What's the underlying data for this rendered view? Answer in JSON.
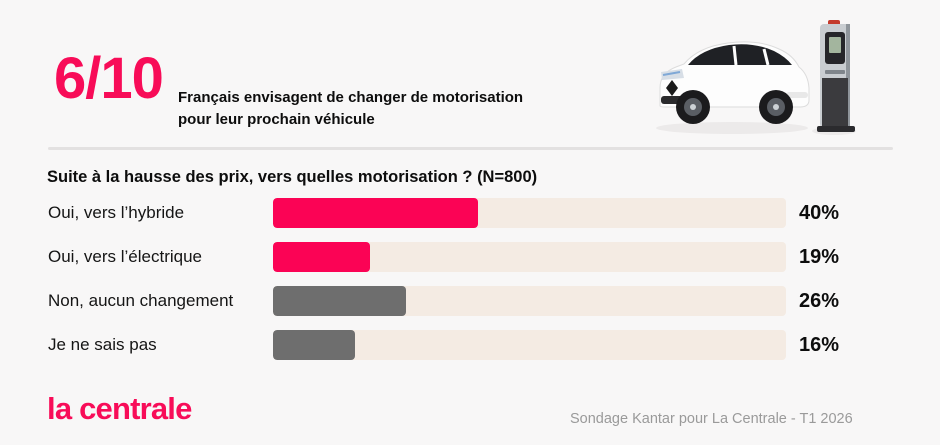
{
  "colors": {
    "accent_pink": "#FB0355",
    "bar_gray": "#6E6E6E",
    "bar_track": "#F4EBE3",
    "background": "#F8F7F7",
    "divider": "#E3E1E1",
    "source_text": "#9A9A9A"
  },
  "header": {
    "stat": "6/10",
    "subtitle_line1": "Français envisagent de changer de motorisation",
    "subtitle_line2": "pour leur prochain véhicule",
    "illustration": "electric-car-with-charging-station"
  },
  "chart": {
    "question": "Suite à la hausse des prix, vers quelles motorisation ? (N=800)",
    "rows": [
      {
        "label": "Oui, vers l’hybride",
        "value": 40,
        "value_label": "40%",
        "color": "#FB0355"
      },
      {
        "label": "Oui, vers l’électrique",
        "value": 19,
        "value_label": "19%",
        "color": "#FB0355"
      },
      {
        "label": "Non, aucun changement",
        "value": 26,
        "value_label": "26%",
        "color": "#6E6E6E"
      },
      {
        "label": "Je ne sais pas",
        "value": 16,
        "value_label": "16%",
        "color": "#6E6E6E"
      }
    ]
  },
  "chart_data": {
    "type": "bar",
    "orientation": "horizontal",
    "title": "Suite à la hausse des prix, vers quelles motorisation ? (N=800)",
    "categories": [
      "Oui, vers l’hybride",
      "Oui, vers l’électrique",
      "Non, aucun changement",
      "Je ne sais pas"
    ],
    "values": [
      40,
      19,
      26,
      16
    ],
    "unit": "%",
    "xlim": [
      0,
      100
    ],
    "sample_size_label": "N=800",
    "grid": false,
    "legend": "none",
    "series_colors": [
      "#FB0355",
      "#FB0355",
      "#6E6E6E",
      "#6E6E6E"
    ]
  },
  "footer": {
    "logo": "la centrale",
    "source": "Sondage Kantar pour La Centrale - T1 2026"
  }
}
